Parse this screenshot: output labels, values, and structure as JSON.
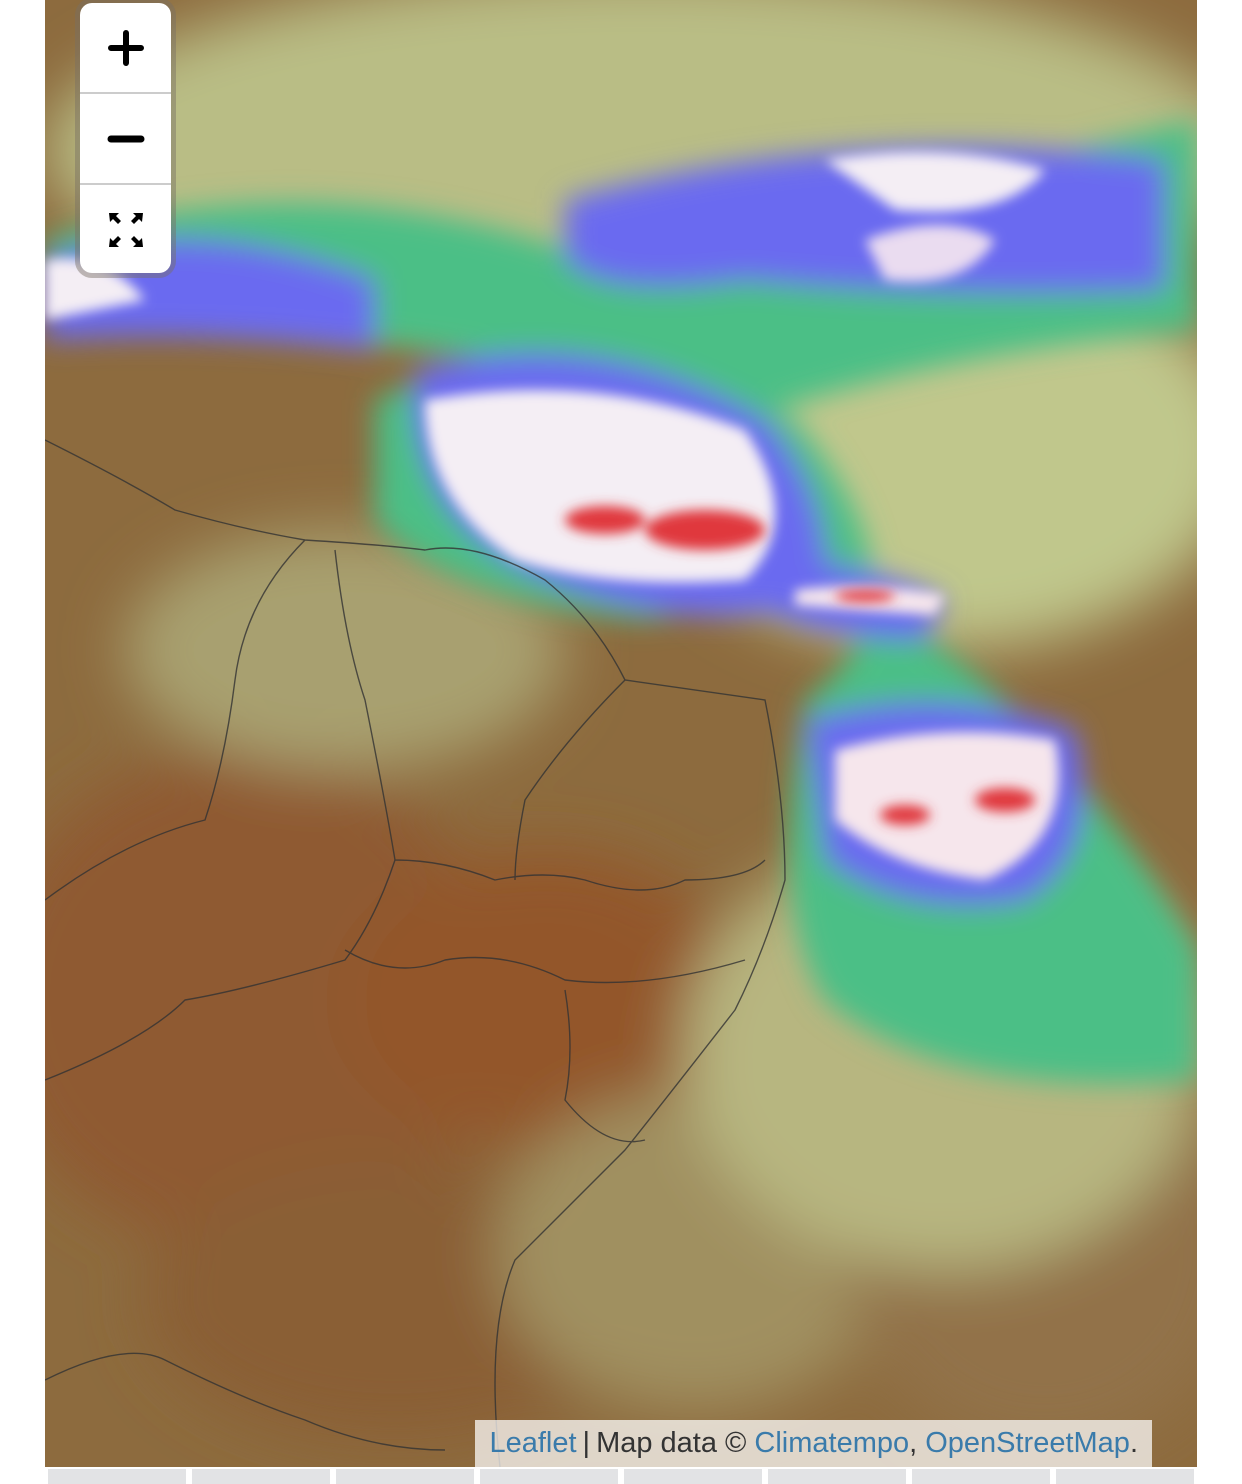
{
  "map": {
    "controls": {
      "zoom_in": "+",
      "zoom_out": "−",
      "fullscreen_icon": "fullscreen-icon"
    },
    "attribution": {
      "leaflet": "Leaflet",
      "separator": "|",
      "prefix": "Map data ©",
      "climatempo": "Climatempo",
      "comma": ",",
      "osm": "OpenStreetMap",
      "period": "."
    },
    "colors": {
      "land": "#8a6a3c",
      "cloud_green": "#4cbf86",
      "cloud_blue": "#6a6af0",
      "cloud_white": "#f4eef4",
      "cloud_red": "#e0383c",
      "link": "#3a7bab"
    }
  },
  "bottom_tabs": [
    "",
    "",
    "",
    "",
    "",
    "",
    "",
    ""
  ]
}
